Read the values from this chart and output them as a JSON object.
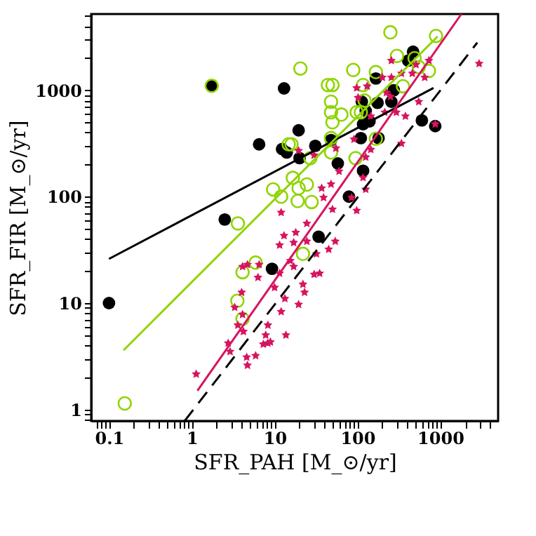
{
  "chart_data": {
    "type": "scatter",
    "xlabel": "SFR_PAH [M_⊙/yr]",
    "ylabel": "SFR_FIR [M_⊙/yr]",
    "log": "xy",
    "grid": false,
    "xlim": [
      0.061,
      5000
    ],
    "ylim": [
      0.78,
      5200
    ],
    "xticks": [
      {
        "value": 0.07,
        "label": null
      },
      {
        "value": 0.08,
        "label": null
      },
      {
        "value": 0.09,
        "label": null
      },
      0.1,
      {
        "value": 0.2,
        "label": null
      },
      {
        "value": 0.3,
        "label": null
      },
      {
        "value": 0.4,
        "label": null
      },
      {
        "value": 0.5,
        "label": null
      },
      {
        "value": 0.6,
        "label": null
      },
      {
        "value": 0.7,
        "label": null
      },
      {
        "value": 0.8,
        "label": null
      },
      {
        "value": 0.9,
        "label": null
      },
      1,
      {
        "value": 2,
        "label": null
      },
      {
        "value": 3,
        "label": null
      },
      {
        "value": 4,
        "label": null
      },
      {
        "value": 5,
        "label": null
      },
      {
        "value": 6,
        "label": null
      },
      {
        "value": 7,
        "label": null
      },
      {
        "value": 8,
        "label": null
      },
      {
        "value": 9,
        "label": null
      },
      10,
      {
        "value": 20,
        "label": null
      },
      {
        "value": 30,
        "label": null
      },
      {
        "value": 40,
        "label": null
      },
      {
        "value": 50,
        "label": null
      },
      {
        "value": 60,
        "label": null
      },
      {
        "value": 70,
        "label": null
      },
      {
        "value": 80,
        "label": null
      },
      {
        "value": 90,
        "label": null
      },
      100,
      {
        "value": 200,
        "label": null
      },
      {
        "value": 300,
        "label": null
      },
      {
        "value": 400,
        "label": null
      },
      {
        "value": 500,
        "label": null
      },
      {
        "value": 600,
        "label": null
      },
      {
        "value": 700,
        "label": null
      },
      {
        "value": 800,
        "label": null
      },
      {
        "value": 900,
        "label": null
      },
      1000,
      {
        "value": 2000,
        "label": null
      },
      {
        "value": 3000,
        "label": null
      },
      {
        "value": 4000,
        "label": null
      }
    ],
    "yticks": [
      {
        "value": 0.8,
        "label": null
      },
      {
        "value": 0.9,
        "label": null
      },
      1,
      {
        "value": 2,
        "label": null
      },
      {
        "value": 3,
        "label": null
      },
      {
        "value": 4,
        "label": null
      },
      {
        "value": 5,
        "label": null
      },
      {
        "value": 6,
        "label": null
      },
      {
        "value": 7,
        "label": null
      },
      {
        "value": 8,
        "label": null
      },
      {
        "value": 9,
        "label": null
      },
      10,
      {
        "value": 20,
        "label": null
      },
      {
        "value": 30,
        "label": null
      },
      {
        "value": 40,
        "label": null
      },
      {
        "value": 50,
        "label": null
      },
      {
        "value": 60,
        "label": null
      },
      {
        "value": 70,
        "label": null
      },
      {
        "value": 80,
        "label": null
      },
      {
        "value": 90,
        "label": null
      },
      100,
      {
        "value": 200,
        "label": null
      },
      {
        "value": 300,
        "label": null
      },
      {
        "value": 400,
        "label": null
      },
      {
        "value": 500,
        "label": null
      },
      {
        "value": 600,
        "label": null
      },
      {
        "value": 700,
        "label": null
      },
      {
        "value": 800,
        "label": null
      },
      {
        "value": 900,
        "label": null
      },
      1000,
      {
        "value": 2000,
        "label": null
      },
      {
        "value": 3000,
        "label": null
      },
      {
        "value": 4000,
        "label": null
      },
      {
        "value": 5000,
        "label": null
      }
    ],
    "series": [
      {
        "color": "#000000",
        "marker": "circle",
        "x": [
          0.1,
          1.74,
          13,
          6.5,
          12.3,
          2.5,
          9.3,
          19.5,
          14,
          20,
          31,
          48,
          58,
          34,
          79,
          117,
          110,
          140,
          180,
          175,
          113,
          167,
          257,
          275,
          410,
          470,
          600,
          870,
          126,
          117
        ],
        "values": [
          10,
          1100,
          1040,
          310,
          280,
          61,
          21,
          420,
          260,
          230,
          300,
          340,
          205,
          42,
          100,
          175,
          355,
          510,
          355,
          760,
          780,
          1290,
          780,
          1000,
          1900,
          2300,
          520,
          460,
          640,
          480
        ]
      },
      {
        "color": "#8fd400",
        "marker": "circle",
        "x": [
          1.74,
          0.155,
          3.55,
          4.1,
          5.9,
          4.1,
          3.6,
          9.6,
          12,
          14.8,
          16.6,
          19.5,
          24.5,
          19,
          28,
          16,
          20.5,
          27,
          44,
          50,
          48,
          48,
          64,
          50,
          48,
          48,
          89,
          95,
          98,
          117,
          167,
          167,
          250,
          300,
          355,
          490,
          730,
          890,
          550,
          122,
          110,
          22
        ],
        "values": [
          1100,
          1.14,
          10.5,
          19.5,
          24,
          7.1,
          56,
          117,
          100,
          310,
          150,
          120,
          130,
          91,
          89,
          310,
          1600,
          230,
          1120,
          1120,
          780,
          620,
          590,
          500,
          355,
          260,
          1550,
          230,
          620,
          1120,
          1480,
          350,
          3500,
          2100,
          1090,
          2000,
          1520,
          3240,
          1650,
          800,
          620,
          29
        ]
      },
      {
        "color": "#d6145f",
        "marker": "star",
        "x": [
          1.13,
          2.75,
          2.9,
          3.3,
          3.6,
          4.1,
          4.2,
          4.0,
          4.1,
          4.7,
          4.6,
          4.7,
          5.9,
          6.3,
          6.5,
          7.3,
          7.8,
          8.3,
          8.3,
          8.9,
          10,
          11.5,
          11.5,
          12,
          13,
          13.3,
          13.7,
          18,
          17,
          15.5,
          24.5,
          32,
          45,
          54,
          35,
          30,
          22,
          23,
          19.5,
          17,
          12,
          19.5,
          24.5,
          37,
          39,
          48,
          50,
          60,
          30,
          55,
          91,
          102,
          131,
          145,
          145,
          126,
          117,
          126,
          85,
          98,
          200,
          257,
          257,
          340,
          224,
          250,
          214,
          295,
          380,
          340,
          510,
          650,
          730,
          550,
          870,
          2950,
          460,
          98
        ],
        "values": [
          2.15,
          4.2,
          3.5,
          9.1,
          6.2,
          7.8,
          5.4,
          12.6,
          22,
          23,
          3.1,
          2.6,
          3.2,
          17.4,
          23,
          4.1,
          5.0,
          6.2,
          4.2,
          4.3,
          14,
          19,
          35,
          8.3,
          43,
          11,
          5.0,
          46,
          37,
          25,
          38,
          29,
          32,
          38,
          19,
          18.6,
          15,
          12.6,
          9.7,
          22,
          71,
          270,
          56,
          120,
          98,
          131,
          76,
          173,
          245,
          285,
          346,
          850,
          1090,
          570,
          277,
          235,
          151,
          117,
          98,
          74,
          1320,
          1900,
          1320,
          1440,
          950,
          870,
          620,
          620,
          570,
          316,
          1740,
          1320,
          1900,
          780,
          480,
          1780,
          1440,
          1050
        ]
      },
      {
        "type": "line",
        "color": "#000000",
        "line_style": "solid",
        "x": [
          0.1,
          830
        ],
        "values": [
          26,
          1050
        ]
      },
      {
        "type": "line",
        "color": "#8fd400",
        "line_style": "solid",
        "x": [
          0.15,
          930
        ],
        "values": [
          3.6,
          3200
        ]
      },
      {
        "type": "line",
        "color": "#d6145f",
        "line_style": "solid",
        "x": [
          1.17,
          1800
        ],
        "values": [
          1.5,
          5200
        ]
      },
      {
        "type": "line",
        "color": "#000000",
        "line_style": "dashed",
        "x": [
          0.82,
          2800
        ],
        "values": [
          0.78,
          2800
        ]
      }
    ]
  }
}
